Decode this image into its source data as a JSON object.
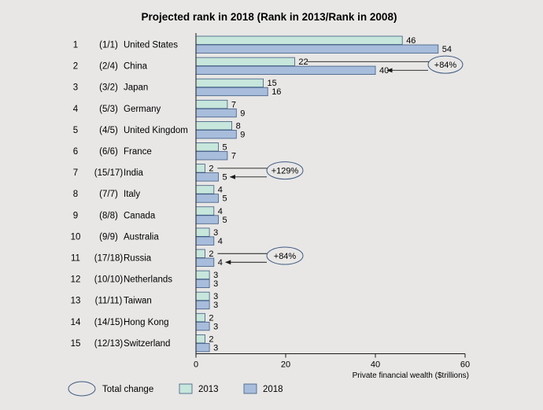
{
  "chart_data": {
    "type": "bar",
    "orientation": "horizontal",
    "title": "Projected rank in 2018 (Rank in 2013/Rank in 2008)",
    "xlabel": "Private financial wealth ($trillions)",
    "xlim": [
      0,
      60
    ],
    "xticks": [
      "0",
      "20",
      "40",
      "60"
    ],
    "grid": false,
    "legend_position": "bottom-left",
    "colors": {
      "2013": "#c7e6dc",
      "2018": "#a8bddc",
      "stroke": "#3f5a80",
      "background": "#e8e7e6"
    },
    "rows": [
      {
        "rank": "1",
        "prior": "(1/1)",
        "country": "United States",
        "v2013": 46,
        "v2018": 54
      },
      {
        "rank": "2",
        "prior": "(2/4)",
        "country": "China",
        "v2013": 22,
        "v2018": 40
      },
      {
        "rank": "3",
        "prior": "(3/2)",
        "country": "Japan",
        "v2013": 15,
        "v2018": 16
      },
      {
        "rank": "4",
        "prior": "(5/3)",
        "country": "Germany",
        "v2013": 7,
        "v2018": 9
      },
      {
        "rank": "5",
        "prior": "(4/5)",
        "country": "United Kingdom",
        "v2013": 8,
        "v2018": 9
      },
      {
        "rank": "6",
        "prior": "(6/6)",
        "country": "France",
        "v2013": 5,
        "v2018": 7
      },
      {
        "rank": "7",
        "prior": "(15/17)",
        "country": "India",
        "v2013": 2,
        "v2018": 5
      },
      {
        "rank": "8",
        "prior": "(7/7)",
        "country": "Italy",
        "v2013": 4,
        "v2018": 5
      },
      {
        "rank": "9",
        "prior": "(8/8)",
        "country": "Canada",
        "v2013": 4,
        "v2018": 5
      },
      {
        "rank": "10",
        "prior": "(9/9)",
        "country": "Australia",
        "v2013": 3,
        "v2018": 4
      },
      {
        "rank": "11",
        "prior": "(17/18)",
        "country": "Russia",
        "v2013": 2,
        "v2018": 4
      },
      {
        "rank": "12",
        "prior": "(10/10)",
        "country": "Netherlands",
        "v2013": 3,
        "v2018": 3
      },
      {
        "rank": "13",
        "prior": "(11/11)",
        "country": "Taiwan",
        "v2013": 3,
        "v2018": 3
      },
      {
        "rank": "14",
        "prior": "(14/15)",
        "country": "Hong Kong",
        "v2013": 2,
        "v2018": 3
      },
      {
        "rank": "15",
        "prior": "(12/13)",
        "country": "Switzerland",
        "v2013": 2,
        "v2018": 3
      }
    ],
    "annotations": [
      {
        "country": "China",
        "text": "+84%"
      },
      {
        "country": "India",
        "text": "+129%"
      },
      {
        "country": "Russia",
        "text": "+84%"
      }
    ],
    "legend": {
      "change": "Total change",
      "s2013": "2013",
      "s2018": "2018"
    }
  }
}
